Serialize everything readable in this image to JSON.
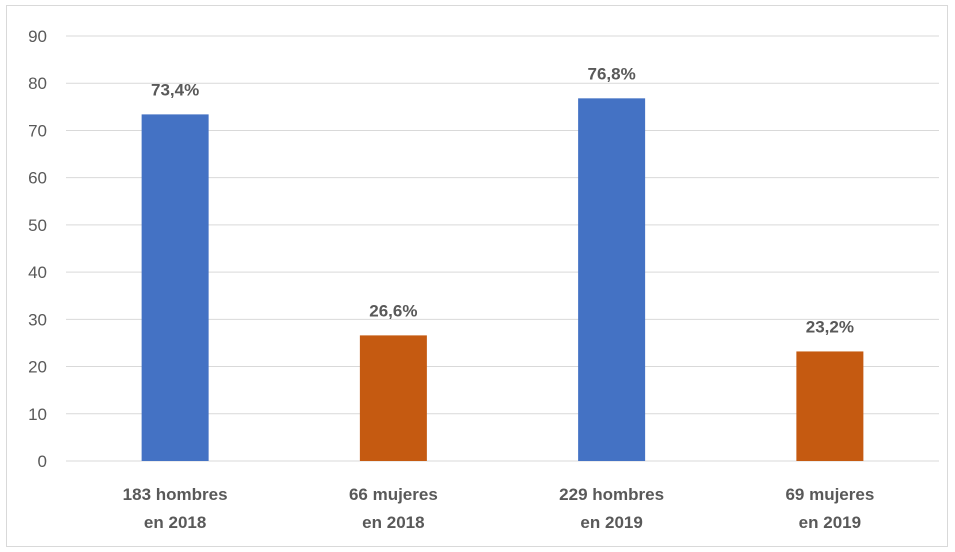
{
  "chart_data": {
    "type": "bar",
    "categories": [
      [
        "183 hombres",
        "en 2018"
      ],
      [
        "66 mujeres",
        "en 2018"
      ],
      [
        "229 hombres",
        "en 2019"
      ],
      [
        "69 mujeres",
        "en 2019"
      ]
    ],
    "values": [
      73.4,
      26.6,
      76.8,
      23.2
    ],
    "data_labels": [
      "73,4%",
      "26,6%",
      "76,8%",
      "23,2%"
    ],
    "bar_colors": [
      "#4472c4",
      "#c55a11",
      "#4472c4",
      "#c55a11"
    ],
    "y_ticks": [
      "0",
      "10",
      "20",
      "30",
      "40",
      "50",
      "60",
      "70",
      "80",
      "90"
    ],
    "ylim": [
      0,
      90
    ],
    "grid": true,
    "legend": "none",
    "title": "",
    "xlabel": "",
    "ylabel": ""
  }
}
